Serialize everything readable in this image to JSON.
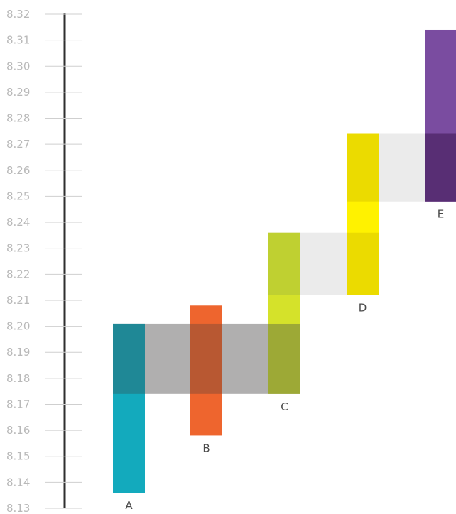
{
  "chart_data": {
    "type": "floating-bar",
    "title": "",
    "xlabel": "",
    "ylabel": "",
    "ylim": [
      8.13,
      8.32
    ],
    "y_ticks": [
      "8.13",
      "8.14",
      "8.15",
      "8.16",
      "8.17",
      "8.18",
      "8.19",
      "8.20",
      "8.21",
      "8.22",
      "8.23",
      "8.24",
      "8.25",
      "8.26",
      "8.27",
      "8.28",
      "8.29",
      "8.30",
      "8.31",
      "8.32"
    ],
    "grid": false,
    "legend": "none",
    "categories": [
      "A",
      "B",
      "C",
      "D",
      "E"
    ],
    "ranges": [
      {
        "category": "A",
        "low": 8.136,
        "high": 8.201,
        "color": "#13aabd"
      },
      {
        "category": "B",
        "low": 8.158,
        "high": 8.208,
        "color": "#ee652e"
      },
      {
        "category": "C",
        "low": 8.174,
        "high": 8.236,
        "color": "#c7d934"
      },
      {
        "category": "D",
        "low": 8.212,
        "high": 8.274,
        "color": "#f5e400"
      },
      {
        "category": "E",
        "low": 8.248,
        "high": 8.314,
        "color": "#7a4ca0"
      }
    ],
    "overlap_bands": [
      {
        "from": "A",
        "to": "C",
        "low": 8.174,
        "high": 8.201,
        "color": "#b0afaf"
      },
      {
        "from": "C",
        "to": "D",
        "low": 8.212,
        "high": 8.236,
        "color": "#ebebeb"
      },
      {
        "from": "D",
        "to": "E",
        "low": 8.248,
        "high": 8.274,
        "color": "#ebebeb"
      }
    ]
  }
}
